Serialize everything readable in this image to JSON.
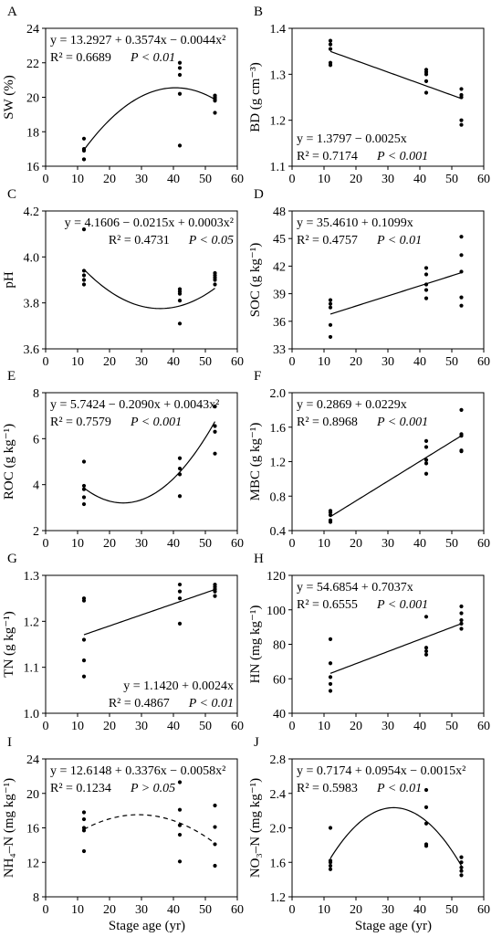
{
  "chart_data": [
    {
      "panel": "A",
      "type": "scatter",
      "ylabel": "SW (%)",
      "xlabel": "",
      "xlim": [
        0,
        60
      ],
      "ylim": [
        16,
        24
      ],
      "xticks": [
        0,
        10,
        20,
        30,
        40,
        50,
        60
      ],
      "yticks": [
        16,
        18,
        20,
        22,
        24
      ],
      "points": [
        [
          12,
          16.4
        ],
        [
          12,
          16.4
        ],
        [
          12,
          16.9
        ],
        [
          12,
          17.0
        ],
        [
          12,
          17.6
        ],
        [
          42,
          17.2
        ],
        [
          42,
          20.2
        ],
        [
          42,
          21.3
        ],
        [
          42,
          21.7
        ],
        [
          42,
          22.0
        ],
        [
          53,
          19.1
        ],
        [
          53,
          19.8
        ],
        [
          53,
          19.9
        ],
        [
          53,
          20.0
        ],
        [
          53,
          20.1
        ]
      ],
      "fit": {
        "kind": "poly2",
        "coef": [
          13.2927,
          0.3574,
          -0.0044
        ],
        "range": [
          12,
          53
        ],
        "dashed": false
      },
      "equation": "y = 13.2927 + 0.3574x − 0.0044x²",
      "r2": "R² = 0.6689",
      "pval": "P < 0.01",
      "stats_pos": "top-left"
    },
    {
      "panel": "B",
      "type": "scatter",
      "ylabel": "BD (g cm⁻³)",
      "xlabel": "",
      "xlim": [
        0,
        60
      ],
      "ylim": [
        1.1,
        1.4
      ],
      "xticks": [
        0,
        10,
        20,
        30,
        40,
        50,
        60
      ],
      "yticks": [
        1.1,
        1.2,
        1.3,
        1.4
      ],
      "points": [
        [
          12,
          1.32
        ],
        [
          12,
          1.325
        ],
        [
          12,
          1.355
        ],
        [
          12,
          1.365
        ],
        [
          12,
          1.373
        ],
        [
          42,
          1.26
        ],
        [
          42,
          1.285
        ],
        [
          42,
          1.3
        ],
        [
          42,
          1.305
        ],
        [
          42,
          1.31
        ],
        [
          53,
          1.19
        ],
        [
          53,
          1.2
        ],
        [
          53,
          1.25
        ],
        [
          53,
          1.255
        ],
        [
          53,
          1.268
        ]
      ],
      "fit": {
        "kind": "linear",
        "coef": [
          1.3797,
          -0.0025
        ],
        "range": [
          12,
          53
        ],
        "dashed": false
      },
      "equation": "y = 1.3797 − 0.0025x",
      "r2": "R² = 0.7174",
      "pval": "P < 0.001",
      "stats_pos": "bottom-left"
    },
    {
      "panel": "C",
      "type": "scatter",
      "ylabel": "pH",
      "xlabel": "",
      "xlim": [
        0,
        60
      ],
      "ylim": [
        3.6,
        4.2
      ],
      "xticks": [
        0,
        10,
        20,
        30,
        40,
        50,
        60
      ],
      "yticks": [
        3.6,
        3.8,
        4.0,
        4.2
      ],
      "points": [
        [
          12,
          3.88
        ],
        [
          12,
          3.9
        ],
        [
          12,
          3.92
        ],
        [
          12,
          3.94
        ],
        [
          12,
          4.12
        ],
        [
          42,
          3.71
        ],
        [
          42,
          3.81
        ],
        [
          42,
          3.84
        ],
        [
          42,
          3.85
        ],
        [
          42,
          3.86
        ],
        [
          53,
          3.88
        ],
        [
          53,
          3.9
        ],
        [
          53,
          3.91
        ],
        [
          53,
          3.92
        ],
        [
          53,
          3.93
        ]
      ],
      "fit": {
        "kind": "poly2",
        "coef": [
          4.1606,
          -0.0215,
          0.0003
        ],
        "range": [
          12,
          53
        ],
        "dashed": false
      },
      "equation": "y = 4.1606 − 0.0215x + 0.0003x²",
      "r2": "R² = 0.4731",
      "pval": "P < 0.05",
      "stats_pos": "top-right"
    },
    {
      "panel": "D",
      "type": "scatter",
      "ylabel": "SOC (g kg⁻¹)",
      "xlabel": "",
      "xlim": [
        0,
        60
      ],
      "ylim": [
        33,
        48
      ],
      "xticks": [
        0,
        10,
        20,
        30,
        40,
        50,
        60
      ],
      "yticks": [
        33,
        36,
        39,
        42,
        45,
        48
      ],
      "points": [
        [
          12,
          34.3
        ],
        [
          12,
          35.6
        ],
        [
          12,
          37.5
        ],
        [
          12,
          37.9
        ],
        [
          12,
          38.3
        ],
        [
          42,
          38.5
        ],
        [
          42,
          39.4
        ],
        [
          42,
          40.0
        ],
        [
          42,
          41.1
        ],
        [
          42,
          41.8
        ],
        [
          53,
          37.7
        ],
        [
          53,
          38.6
        ],
        [
          53,
          41.4
        ],
        [
          53,
          43.2
        ],
        [
          53,
          45.2
        ]
      ],
      "fit": {
        "kind": "linear",
        "coef": [
          35.461,
          0.1099
        ],
        "range": [
          12,
          53
        ],
        "dashed": false
      },
      "equation": "y = 35.4610 + 0.1099x",
      "r2": "R² = 0.4757",
      "pval": "P < 0.01",
      "stats_pos": "top-left"
    },
    {
      "panel": "E",
      "type": "scatter",
      "ylabel": "ROC (g kg⁻¹)",
      "xlabel": "",
      "xlim": [
        0,
        60
      ],
      "ylim": [
        2,
        8
      ],
      "xticks": [
        0,
        10,
        20,
        30,
        40,
        50,
        60
      ],
      "yticks": [
        2,
        4,
        6,
        8
      ],
      "points": [
        [
          12,
          3.15
        ],
        [
          12,
          3.45
        ],
        [
          12,
          3.8
        ],
        [
          12,
          3.95
        ],
        [
          12,
          5.0
        ],
        [
          42,
          3.5
        ],
        [
          42,
          4.45
        ],
        [
          42,
          4.7
        ],
        [
          42,
          5.15
        ],
        [
          53,
          5.35
        ],
        [
          53,
          6.3
        ],
        [
          53,
          6.55
        ],
        [
          53,
          7.4
        ]
      ],
      "fit": {
        "kind": "poly2",
        "coef": [
          5.7424,
          -0.209,
          0.0043
        ],
        "range": [
          12,
          53
        ],
        "dashed": false
      },
      "equation": "y = 5.7424 − 0.2090x + 0.0043x²",
      "r2": "R² = 0.7579",
      "pval": "P < 0.001",
      "stats_pos": "top-left"
    },
    {
      "panel": "F",
      "type": "scatter",
      "ylabel": "MBC (g kg⁻¹)",
      "xlabel": "",
      "xlim": [
        0,
        60
      ],
      "ylim": [
        0.4,
        2.0
      ],
      "xticks": [
        0,
        10,
        20,
        30,
        40,
        50,
        60
      ],
      "yticks": [
        0.4,
        0.8,
        1.2,
        1.6,
        2.0
      ],
      "points": [
        [
          12,
          0.5
        ],
        [
          12,
          0.52
        ],
        [
          12,
          0.58
        ],
        [
          12,
          0.61
        ],
        [
          12,
          0.63
        ],
        [
          42,
          1.06
        ],
        [
          42,
          1.18
        ],
        [
          42,
          1.22
        ],
        [
          42,
          1.37
        ],
        [
          42,
          1.44
        ],
        [
          53,
          1.32
        ],
        [
          53,
          1.33
        ],
        [
          53,
          1.5
        ],
        [
          53,
          1.52
        ],
        [
          53,
          1.8
        ]
      ],
      "fit": {
        "kind": "linear",
        "coef": [
          0.2869,
          0.0229
        ],
        "range": [
          12,
          53
        ],
        "dashed": false
      },
      "equation": "y = 0.2869 + 0.0229x",
      "r2": "R² = 0.8968",
      "pval": "P < 0.001",
      "stats_pos": "top-left"
    },
    {
      "panel": "G",
      "type": "scatter",
      "ylabel": "TN (g kg⁻¹)",
      "xlabel": "",
      "xlim": [
        0,
        60
      ],
      "ylim": [
        1.0,
        1.3
      ],
      "xticks": [
        0,
        10,
        20,
        30,
        40,
        50,
        60
      ],
      "yticks": [
        1.0,
        1.1,
        1.2,
        1.3
      ],
      "points": [
        [
          12,
          1.08
        ],
        [
          12,
          1.115
        ],
        [
          12,
          1.16
        ],
        [
          12,
          1.245
        ],
        [
          12,
          1.25
        ],
        [
          42,
          1.195
        ],
        [
          42,
          1.25
        ],
        [
          42,
          1.265
        ],
        [
          42,
          1.28
        ],
        [
          53,
          1.255
        ],
        [
          53,
          1.265
        ],
        [
          53,
          1.27
        ],
        [
          53,
          1.275
        ],
        [
          53,
          1.28
        ]
      ],
      "fit": {
        "kind": "linear",
        "coef": [
          1.142,
          0.0024
        ],
        "range": [
          12,
          53
        ],
        "dashed": false
      },
      "equation": "y = 1.1420 + 0.0024x",
      "r2": "R² = 0.4867",
      "pval": "P < 0.01",
      "stats_pos": "bottom-right"
    },
    {
      "panel": "H",
      "type": "scatter",
      "ylabel": "HN (mg kg⁻¹)",
      "xlabel": "",
      "xlim": [
        0,
        60
      ],
      "ylim": [
        40,
        120
      ],
      "xticks": [
        0,
        10,
        20,
        30,
        40,
        50,
        60
      ],
      "yticks": [
        40,
        60,
        80,
        100,
        120
      ],
      "points": [
        [
          12,
          53
        ],
        [
          12,
          57
        ],
        [
          12,
          61
        ],
        [
          12,
          69
        ],
        [
          12,
          83
        ],
        [
          42,
          74
        ],
        [
          42,
          76
        ],
        [
          42,
          78
        ],
        [
          42,
          96
        ],
        [
          53,
          89
        ],
        [
          53,
          92
        ],
        [
          53,
          94
        ],
        [
          53,
          98
        ],
        [
          53,
          102
        ]
      ],
      "fit": {
        "kind": "linear",
        "coef": [
          54.6854,
          0.7037
        ],
        "range": [
          12,
          53
        ],
        "dashed": false
      },
      "equation": "y = 54.6854 + 0.7037x",
      "r2": "R² = 0.6555",
      "pval": "P < 0.001",
      "stats_pos": "top-left"
    },
    {
      "panel": "I",
      "type": "scatter",
      "ylabel": "NH₄–N (mg kg⁻¹)",
      "xlabel": "Stage age (yr)",
      "xlim": [
        0,
        60
      ],
      "ylim": [
        8,
        24
      ],
      "xticks": [
        0,
        10,
        20,
        30,
        40,
        50,
        60
      ],
      "yticks": [
        8,
        12,
        16,
        20,
        24
      ],
      "points": [
        [
          12,
          13.3
        ],
        [
          12,
          15.7
        ],
        [
          12,
          16.0
        ],
        [
          12,
          17.0
        ],
        [
          12,
          17.8
        ],
        [
          42,
          12.1
        ],
        [
          42,
          15.2
        ],
        [
          42,
          16.3
        ],
        [
          42,
          18.1
        ],
        [
          42,
          21.3
        ],
        [
          53,
          11.6
        ],
        [
          53,
          14.1
        ],
        [
          53,
          16.1
        ],
        [
          53,
          18.6
        ]
      ],
      "fit": {
        "kind": "poly2",
        "coef": [
          12.6148,
          0.3376,
          -0.0058
        ],
        "range": [
          12,
          53
        ],
        "dashed": true
      },
      "equation": "y = 12.6148 + 0.3376x − 0.0058x²",
      "r2": "R² = 0.1234",
      "pval": "P > 0.05",
      "stats_pos": "top-left"
    },
    {
      "panel": "J",
      "type": "scatter",
      "ylabel": "NO₃–N (mg kg⁻¹)",
      "xlabel": "Stage age (yr)",
      "xlim": [
        0,
        60
      ],
      "ylim": [
        1.2,
        2.8
      ],
      "xticks": [
        0,
        10,
        20,
        30,
        40,
        50,
        60
      ],
      "yticks": [
        1.2,
        1.6,
        2.0,
        2.4,
        2.8
      ],
      "points": [
        [
          12,
          1.52
        ],
        [
          12,
          1.56
        ],
        [
          12,
          1.6
        ],
        [
          12,
          1.62
        ],
        [
          12,
          2.0
        ],
        [
          42,
          1.79
        ],
        [
          42,
          1.81
        ],
        [
          42,
          2.05
        ],
        [
          42,
          2.24
        ],
        [
          42,
          2.44
        ],
        [
          53,
          1.45
        ],
        [
          53,
          1.5
        ],
        [
          53,
          1.54
        ],
        [
          53,
          1.6
        ],
        [
          53,
          1.66
        ]
      ],
      "fit": {
        "kind": "poly2",
        "coef": [
          0.7174,
          0.0954,
          -0.0015
        ],
        "range": [
          12,
          53
        ],
        "dashed": false
      },
      "equation": "y = 0.7174 + 0.0954x − 0.0015x²",
      "r2": "R² = 0.5983",
      "pval": "P < 0.01",
      "stats_pos": "top-left"
    }
  ]
}
